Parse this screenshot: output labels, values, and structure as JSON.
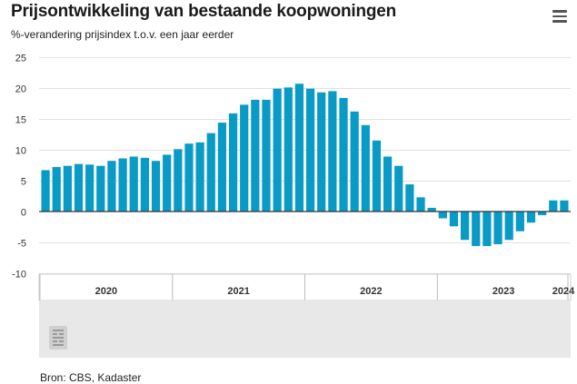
{
  "header": {
    "title": "Prijsontwikkeling van bestaande koopwoningen",
    "subtitle": "%-verandering prijsindex t.o.v. een jaar eerder",
    "menu_icon": "hamburger-menu-icon"
  },
  "footer": {
    "source": "Bron: CBS, Kadaster"
  },
  "watermark": {
    "icon": "cbs-logo-icon"
  },
  "colors": {
    "bar": "#0a9ac6",
    "grid": "#e1e1e1",
    "zero_line": "#333333",
    "navigator_bg": "#e8e8e8"
  },
  "chart_data": {
    "type": "bar",
    "ylim": [
      -10,
      25
    ],
    "yticks": [
      -10,
      -5,
      0,
      5,
      10,
      15,
      20,
      25
    ],
    "year_labels": [
      "2020",
      "2021",
      "2022",
      "2023",
      "2024"
    ],
    "grid": true,
    "series": [
      {
        "values": [
          6.7,
          7.2,
          7.4,
          7.7,
          7.6,
          7.4,
          8.2,
          8.6,
          8.9,
          8.7,
          8.2,
          9.2,
          10.1,
          11.0,
          11.2,
          12.7,
          14.4,
          15.9,
          17.3,
          18.1,
          18.1,
          19.9,
          20.1,
          20.7,
          19.9,
          19.3,
          19.5,
          18.4,
          16.2,
          14.0,
          11.5,
          8.9,
          7.4,
          4.4,
          2.3,
          0.6,
          -1.1,
          -2.4,
          -4.6,
          -5.6,
          -5.6,
          -5.3,
          -4.6,
          -3.2,
          -1.8,
          -0.6,
          1.8,
          1.8
        ]
      }
    ]
  }
}
